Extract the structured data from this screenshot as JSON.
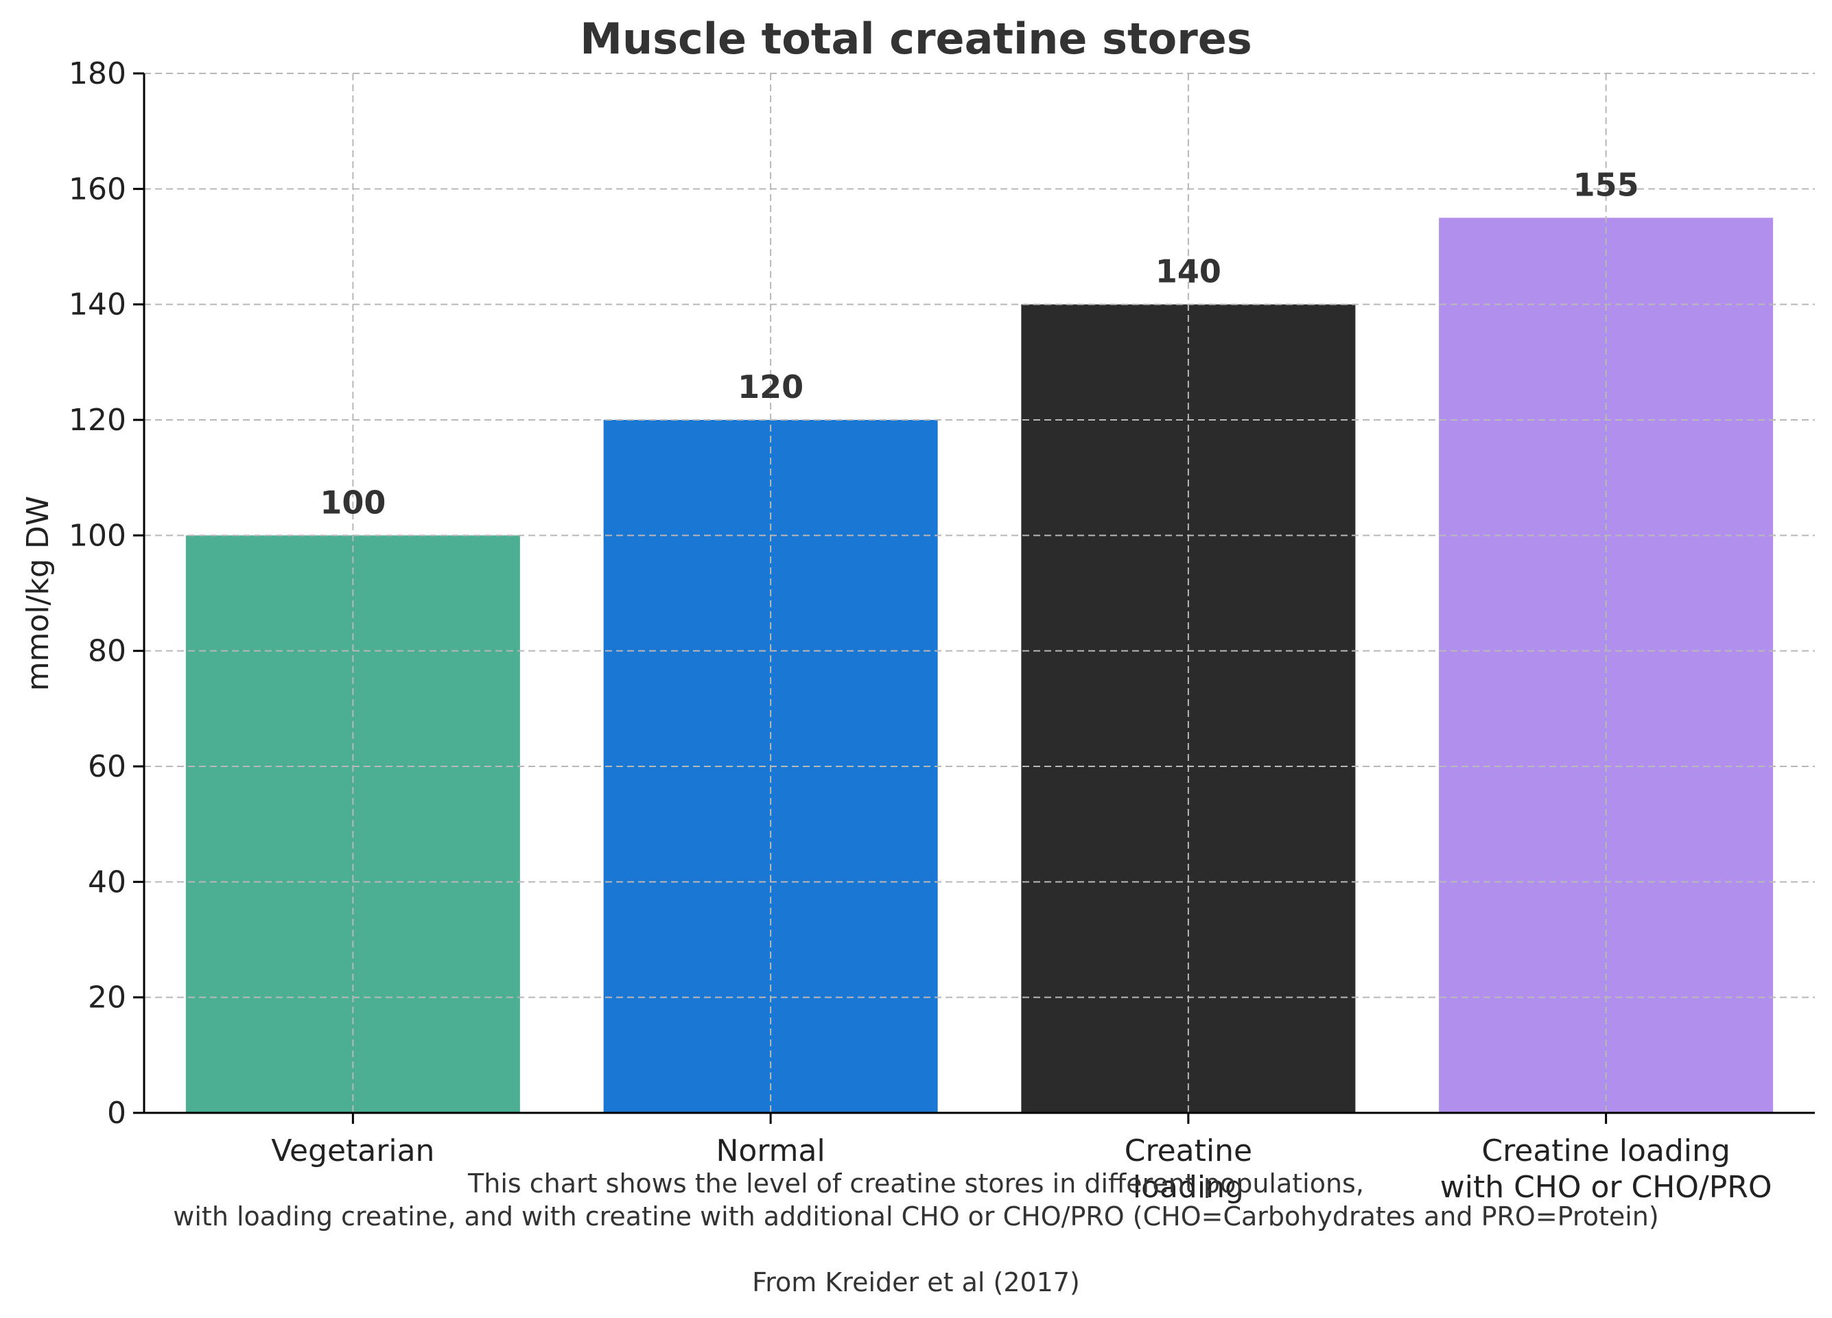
{
  "chart_data": {
    "type": "bar",
    "title": "Muscle total creatine stores",
    "xlabel": "",
    "ylabel": "mmol/kg DW",
    "ylim": [
      0,
      180
    ],
    "yticks": [
      0,
      20,
      40,
      60,
      80,
      100,
      120,
      140,
      160,
      180
    ],
    "grid": true,
    "categories": [
      [
        "Vegetarian"
      ],
      [
        "Normal"
      ],
      [
        "Creatine",
        "loading"
      ],
      [
        "Creatine loading",
        "with CHO or CHO/PRO"
      ]
    ],
    "values": [
      100,
      120,
      140,
      155
    ],
    "value_labels": [
      "100",
      "120",
      "140",
      "155"
    ],
    "colors": [
      "#4caf93",
      "#1b77d4",
      "#2b2b2b",
      "#b190ed"
    ]
  },
  "caption": {
    "line1": "This chart shows the level of creatine stores in different populations,",
    "line2": "with loading creatine, and with creatine with additional CHO or CHO/PRO (CHO=Carbohydrates and PRO=Protein)",
    "source": "From Kreider et al (2017)"
  }
}
